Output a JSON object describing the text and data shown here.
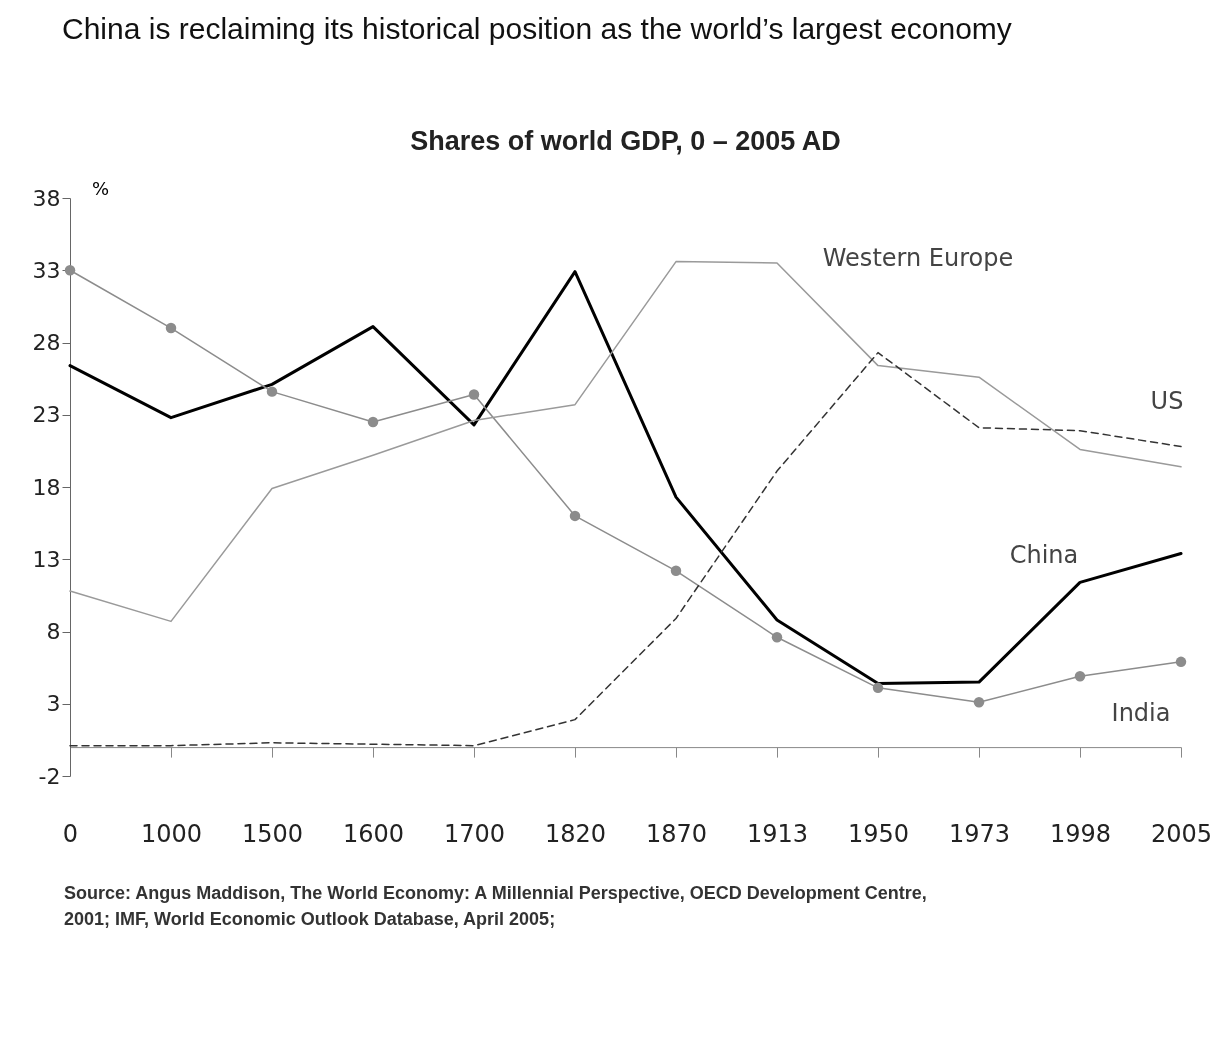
{
  "chart_data": {
    "type": "line",
    "title": "China is reclaiming its historical position as the world’s largest economy",
    "subtitle": "Shares of world GDP, 0 – 2005 AD",
    "ylabel": "%",
    "categories": [
      "0",
      "1000",
      "1500",
      "1600",
      "1700",
      "1820",
      "1870",
      "1913",
      "1950",
      "1973",
      "1998",
      "2005"
    ],
    "series": [
      {
        "name": "China",
        "color": "#000000",
        "line_style": "solid",
        "marker": "none",
        "values": [
          26.4,
          22.8,
          25.1,
          29.1,
          22.3,
          32.9,
          17.3,
          8.8,
          4.4,
          4.5,
          11.4,
          13.4
        ]
      },
      {
        "name": "India",
        "color": "#8c8c8c",
        "line_style": "solid",
        "marker": "circle",
        "values": [
          33.0,
          29.0,
          24.6,
          22.5,
          24.4,
          16.0,
          12.2,
          7.6,
          4.1,
          3.1,
          4.9,
          5.9
        ]
      },
      {
        "name": "Western Europe",
        "color": "#9a9a9a",
        "line_style": "solid",
        "marker": "none",
        "values": [
          10.8,
          8.7,
          17.9,
          20.2,
          22.6,
          23.7,
          33.6,
          33.5,
          26.4,
          25.6,
          20.6,
          19.4
        ]
      },
      {
        "name": "US",
        "color": "#333333",
        "line_style": "dashed",
        "marker": "none",
        "values": [
          0.1,
          0.1,
          0.3,
          0.2,
          0.1,
          1.9,
          8.9,
          19.1,
          27.3,
          22.1,
          21.9,
          20.8
        ]
      }
    ],
    "ylim": [
      -2,
      38
    ],
    "yticks": [
      -2,
      3,
      8,
      13,
      18,
      23,
      28,
      33,
      38
    ],
    "grid": false,
    "annotations": [
      "Source: Angus Maddison, The World Economy: A Millennial Perspective, OECD Development Centre, 2001; IMF, World Economic Outlook Database, April 2005;"
    ]
  }
}
